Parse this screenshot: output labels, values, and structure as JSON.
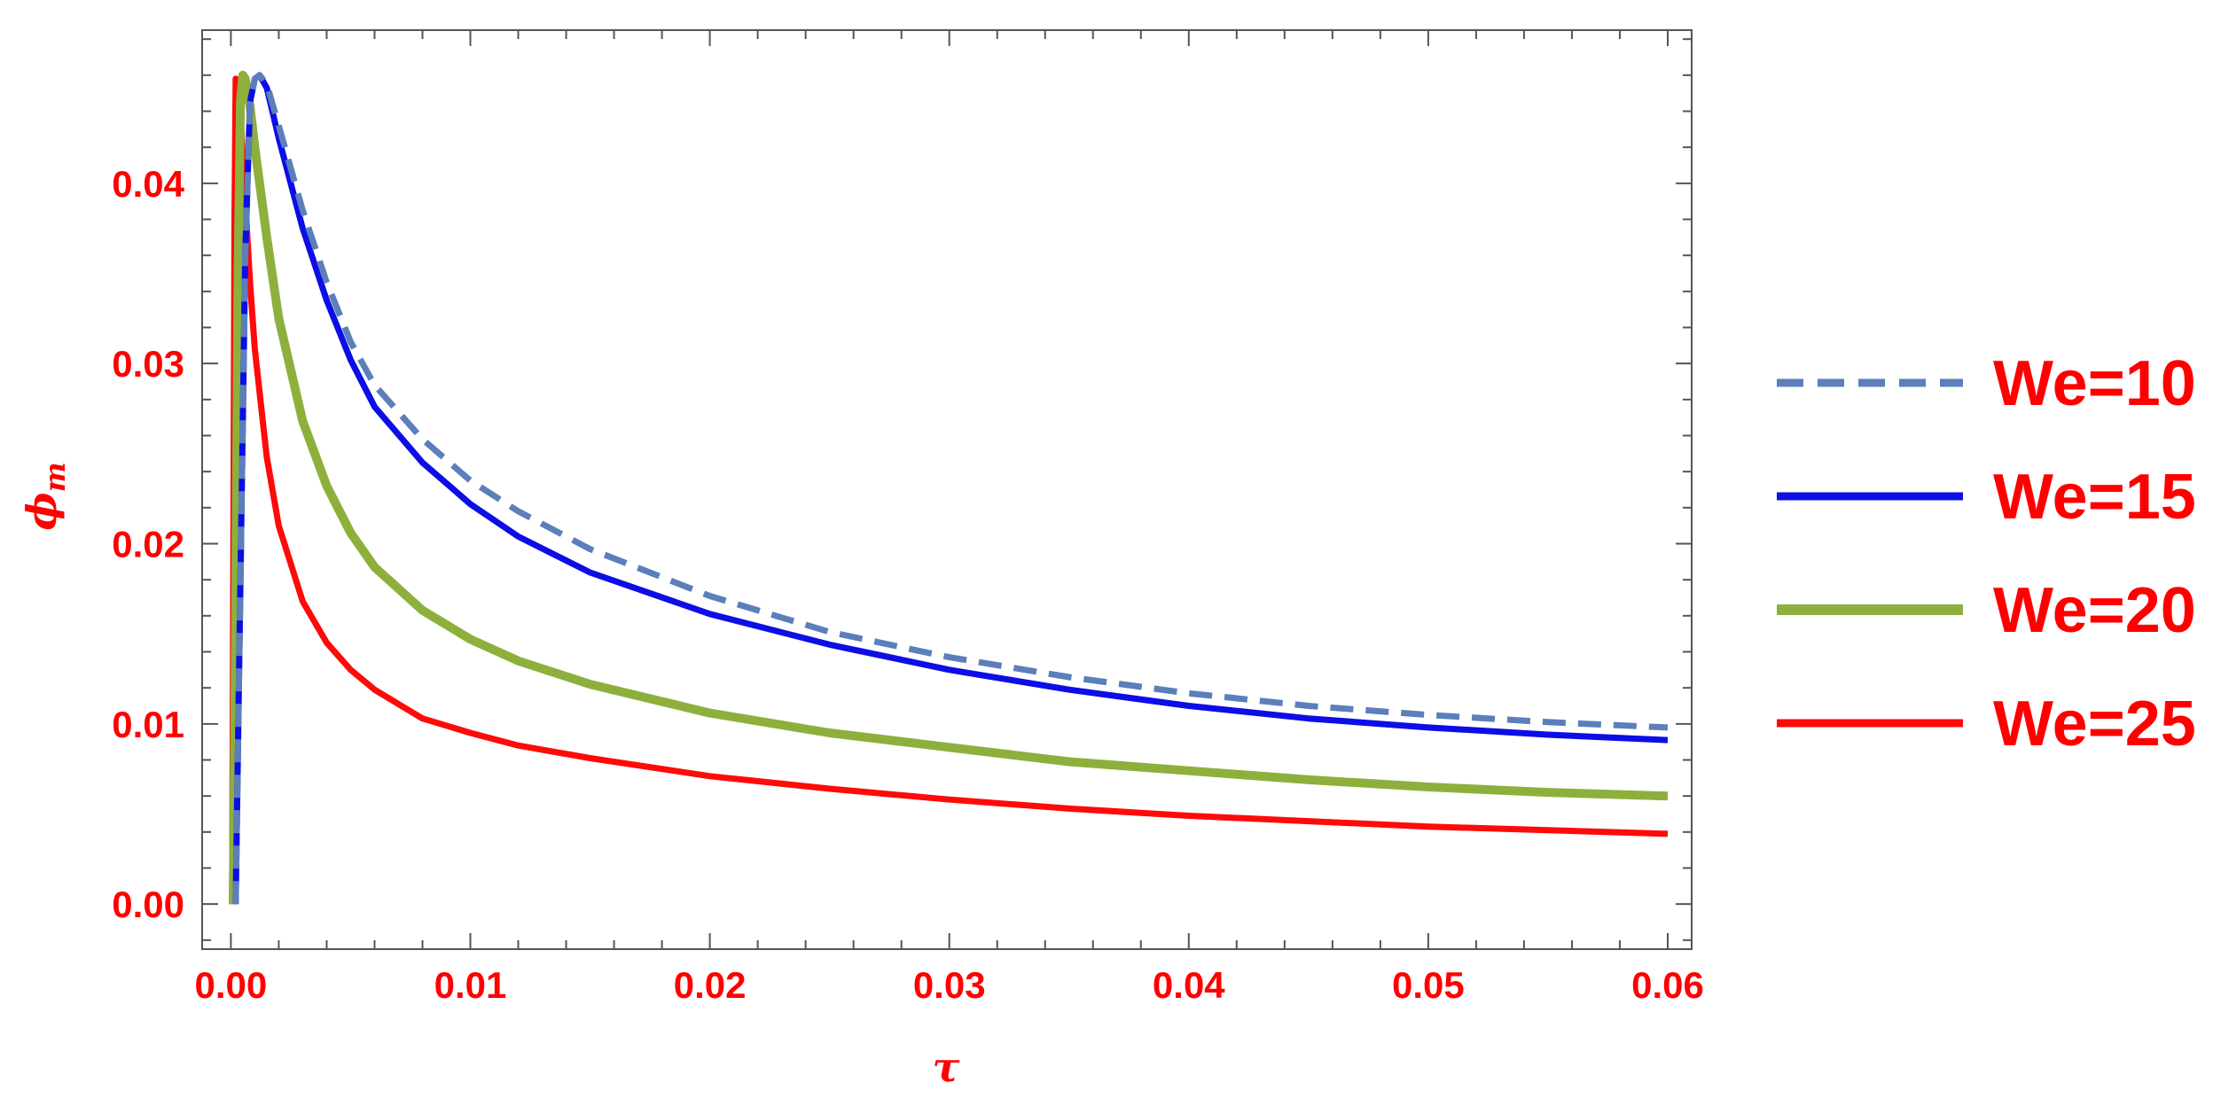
{
  "chart_data": {
    "type": "line",
    "title": "",
    "xlabel": "τ",
    "ylabel": "ϕ",
    "ylabel_sub": "m",
    "xlim": [
      -0.0012,
      0.061
    ],
    "ylim": [
      -0.0025,
      0.0485
    ],
    "x_ticks": [
      0.0,
      0.01,
      0.02,
      0.03,
      0.04,
      0.05,
      0.06
    ],
    "x_tick_labels": [
      "0.00",
      "0.01",
      "0.02",
      "0.03",
      "0.04",
      "0.05",
      "0.06"
    ],
    "y_ticks": [
      0.0,
      0.01,
      0.02,
      0.03,
      0.04
    ],
    "y_tick_labels": [
      "0.00",
      "0.01",
      "0.02",
      "0.03",
      "0.04"
    ],
    "grid": false,
    "frame": true,
    "legend_position": "right",
    "series": [
      {
        "name": "We=10",
        "color": "#5b7fba",
        "dash": true,
        "width": 7,
        "x": [
          0.0002,
          0.0004,
          0.0006,
          0.0008,
          0.001,
          0.0012,
          0.0015,
          0.002,
          0.003,
          0.004,
          0.005,
          0.006,
          0.008,
          0.01,
          0.012,
          0.015,
          0.02,
          0.025,
          0.03,
          0.035,
          0.04,
          0.045,
          0.05,
          0.055,
          0.06
        ],
        "y": [
          0.0,
          0.018,
          0.036,
          0.0445,
          0.0458,
          0.046,
          0.0455,
          0.0432,
          0.0385,
          0.0345,
          0.0312,
          0.0288,
          0.0258,
          0.0235,
          0.0218,
          0.0197,
          0.0171,
          0.0151,
          0.0137,
          0.0126,
          0.0117,
          0.011,
          0.0105,
          0.0101,
          0.0098
        ]
      },
      {
        "name": "We=15",
        "color": "#0d0de6",
        "dash": false,
        "width": 7,
        "x": [
          0.0002,
          0.0004,
          0.0006,
          0.0008,
          0.001,
          0.0012,
          0.0015,
          0.002,
          0.003,
          0.004,
          0.005,
          0.006,
          0.008,
          0.01,
          0.012,
          0.015,
          0.02,
          0.025,
          0.03,
          0.035,
          0.04,
          0.045,
          0.05,
          0.055,
          0.06
        ],
        "y": [
          0.0,
          0.018,
          0.036,
          0.0445,
          0.0458,
          0.046,
          0.0453,
          0.0425,
          0.0375,
          0.0335,
          0.0302,
          0.0276,
          0.0245,
          0.0222,
          0.0204,
          0.0184,
          0.0161,
          0.0144,
          0.013,
          0.0119,
          0.011,
          0.0103,
          0.0098,
          0.0094,
          0.0091
        ]
      },
      {
        "name": "We=20",
        "color": "#8db03c",
        "dash": false,
        "width": 10,
        "x": [
          0.0001,
          0.0002,
          0.0003,
          0.0004,
          0.0005,
          0.0006,
          0.0008,
          0.001,
          0.0015,
          0.002,
          0.003,
          0.004,
          0.005,
          0.006,
          0.008,
          0.01,
          0.012,
          0.015,
          0.02,
          0.025,
          0.03,
          0.035,
          0.04,
          0.045,
          0.05,
          0.055,
          0.06
        ],
        "y": [
          0.0,
          0.016,
          0.035,
          0.0445,
          0.046,
          0.0458,
          0.0443,
          0.042,
          0.037,
          0.0325,
          0.0268,
          0.0232,
          0.0206,
          0.0187,
          0.0163,
          0.0147,
          0.0135,
          0.0122,
          0.0106,
          0.0095,
          0.0087,
          0.0079,
          0.0074,
          0.0069,
          0.0065,
          0.0062,
          0.006
        ]
      },
      {
        "name": "We=25",
        "color": "#ff0a0a",
        "dash": false,
        "width": 7,
        "x": [
          5e-05,
          0.0001,
          0.00015,
          0.0002,
          0.0003,
          0.0004,
          0.0005,
          0.0006,
          0.0008,
          0.001,
          0.0015,
          0.002,
          0.003,
          0.004,
          0.005,
          0.006,
          0.008,
          0.01,
          0.012,
          0.015,
          0.02,
          0.025,
          0.03,
          0.035,
          0.04,
          0.045,
          0.05,
          0.055,
          0.06
        ],
        "y": [
          0.0,
          0.018,
          0.038,
          0.0458,
          0.0455,
          0.0438,
          0.0415,
          0.039,
          0.0345,
          0.0308,
          0.0248,
          0.021,
          0.0168,
          0.0145,
          0.013,
          0.0119,
          0.0103,
          0.0095,
          0.0088,
          0.0081,
          0.0071,
          0.0064,
          0.0058,
          0.0053,
          0.0049,
          0.0046,
          0.0043,
          0.0041,
          0.0039
        ]
      }
    ]
  }
}
